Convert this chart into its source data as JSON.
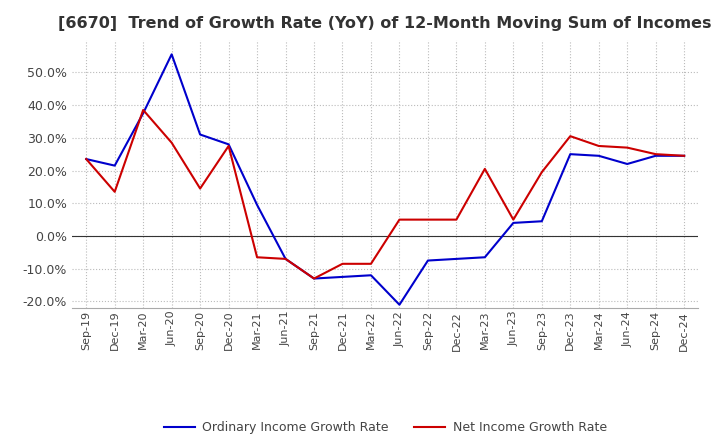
{
  "title": "[6670]  Trend of Growth Rate (YoY) of 12-Month Moving Sum of Incomes",
  "title_fontsize": 11.5,
  "ylim": [
    -0.22,
    0.6
  ],
  "yticks": [
    -0.2,
    -0.1,
    0.0,
    0.1,
    0.2,
    0.3,
    0.4,
    0.5
  ],
  "background_color": "#ffffff",
  "grid_color": "#bbbbbb",
  "ordinary_color": "#0000cc",
  "net_color": "#cc0000",
  "legend_ordinary": "Ordinary Income Growth Rate",
  "legend_net": "Net Income Growth Rate",
  "x_labels": [
    "Sep-19",
    "Dec-19",
    "Mar-20",
    "Jun-20",
    "Sep-20",
    "Dec-20",
    "Mar-21",
    "Jun-21",
    "Sep-21",
    "Dec-21",
    "Mar-22",
    "Jun-22",
    "Sep-22",
    "Dec-22",
    "Mar-23",
    "Jun-23",
    "Sep-23",
    "Dec-23",
    "Mar-24",
    "Jun-24",
    "Sep-24",
    "Dec-24"
  ],
  "ordinary_income_growth": [
    0.235,
    0.215,
    0.375,
    0.555,
    0.31,
    0.28,
    0.095,
    -0.07,
    -0.13,
    -0.125,
    -0.12,
    -0.21,
    -0.075,
    -0.07,
    -0.065,
    0.04,
    0.045,
    0.25,
    0.245,
    0.22,
    0.245,
    0.245
  ],
  "net_income_growth": [
    0.235,
    0.135,
    0.385,
    0.285,
    0.145,
    0.275,
    -0.065,
    -0.07,
    -0.13,
    -0.085,
    -0.085,
    0.05,
    0.05,
    0.05,
    0.205,
    0.05,
    0.195,
    0.305,
    0.275,
    0.27,
    0.25,
    0.245
  ]
}
